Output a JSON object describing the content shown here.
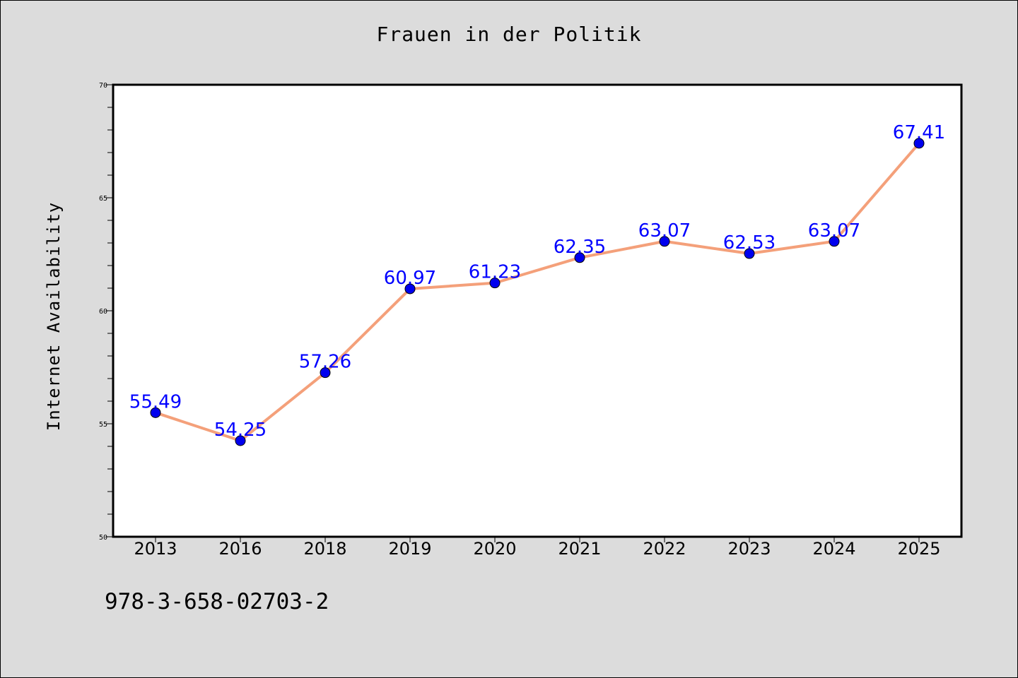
{
  "chart_data": {
    "type": "line",
    "title": "Frauen in der Politik",
    "xlabel": "",
    "ylabel": "Internet Availability",
    "categories": [
      "2013",
      "2016",
      "2018",
      "2019",
      "2020",
      "2021",
      "2022",
      "2023",
      "2024",
      "2025"
    ],
    "series": [
      {
        "values": [
          55.49,
          54.25,
          57.26,
          60.97,
          61.23,
          62.35,
          63.07,
          62.53,
          63.07,
          67.41
        ],
        "labels": [
          "55.49",
          "54.25",
          "57.26",
          "60.97",
          "61.23",
          "62.35",
          "63.07",
          "62.53",
          "63.07",
          "67.41"
        ],
        "line_color": "#f4a07a",
        "marker_color": "#0000ee",
        "label_color": "#0000ff"
      }
    ],
    "ylim": [
      50,
      70
    ],
    "yticks": [
      50,
      55,
      60,
      65,
      70
    ],
    "grid": false,
    "legend": "none"
  },
  "footer": {
    "code": "978-3-658-02703-2"
  }
}
